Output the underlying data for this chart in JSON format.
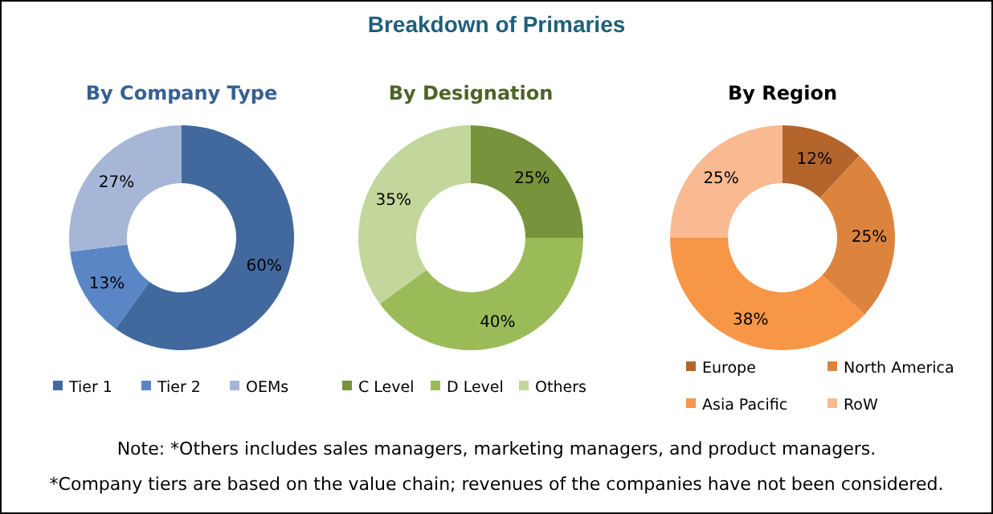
{
  "chart_data": [
    {
      "type": "other",
      "title": "Breakdown of Primaries",
      "annotations": [
        "Note: *Others includes sales managers, marketing managers, and product managers.",
        "*Company tiers are based on the value chain; revenues of the companies have not been considered."
      ]
    },
    {
      "type": "donut",
      "title": "By Company Type",
      "categories": [
        "Tier 1",
        "Tier 2",
        "OEMs"
      ],
      "values": [
        60,
        13,
        27
      ],
      "colors": [
        "#41699e",
        "#5b86c5",
        "#a5b6d6"
      ],
      "value_labels": [
        "60%",
        "13%",
        "27%"
      ],
      "legend": "bottom"
    },
    {
      "type": "donut",
      "title": "By Designation",
      "categories": [
        "C Level",
        "D Level",
        "Others"
      ],
      "values": [
        25,
        40,
        35
      ],
      "colors": [
        "#77933c",
        "#9bbb59",
        "#c3d69b"
      ],
      "value_labels": [
        "25%",
        "40%",
        "35%"
      ],
      "legend": "bottom"
    },
    {
      "type": "donut",
      "title": "By Region",
      "categories": [
        "Europe",
        "North America",
        "Asia Pacific",
        "RoW"
      ],
      "values": [
        12,
        25,
        38,
        25
      ],
      "colors": [
        "#b3652b",
        "#dc843e",
        "#f79646",
        "#f9b991"
      ],
      "value_labels": [
        "12%",
        "25%",
        "38%",
        "25%"
      ],
      "legend": "bottom"
    }
  ]
}
